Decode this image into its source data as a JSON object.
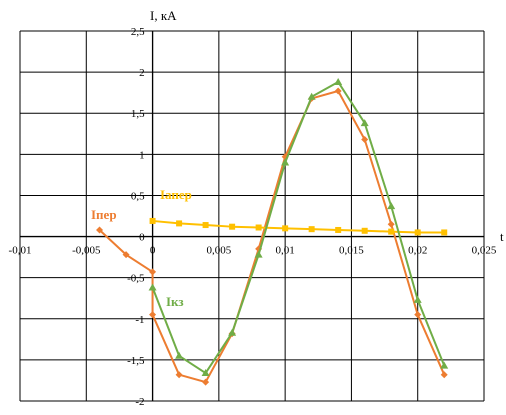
{
  "chart_data": {
    "type": "line",
    "ylabel": "I, кА",
    "xlabel": "t",
    "xlim": [
      -0.01,
      0.025
    ],
    "ylim": [
      -2,
      2.5
    ],
    "x_ticks": [
      "-0,01",
      "-0,005",
      "0",
      "0,005",
      "0,01",
      "0,015",
      "0,02",
      "0,025"
    ],
    "y_ticks": [
      "2,5",
      "2",
      "1,5",
      "1",
      "0,5",
      "0",
      "-0,5",
      "-1",
      "-1,5",
      "-2"
    ],
    "grid": true,
    "series": [
      {
        "name": "Iпер",
        "color": "#ED7D31",
        "marker": "diamond",
        "points": [
          [
            -0.004,
            0.08
          ],
          [
            -0.002,
            -0.22
          ],
          [
            0,
            -0.43
          ],
          [
            0,
            -0.95
          ],
          [
            0.002,
            -1.68
          ],
          [
            0.004,
            -1.77
          ],
          [
            0.006,
            -1.18
          ],
          [
            0.008,
            -0.15
          ],
          [
            0.01,
            0.97
          ],
          [
            0.012,
            1.68
          ],
          [
            0.014,
            1.77
          ],
          [
            0.016,
            1.18
          ],
          [
            0.018,
            0.15
          ],
          [
            0.02,
            -0.95
          ],
          [
            0.022,
            -1.68
          ]
        ]
      },
      {
        "name": "Iапер",
        "color": "#FFC000",
        "marker": "square",
        "points": [
          [
            0,
            0.19
          ],
          [
            0.002,
            0.16
          ],
          [
            0.004,
            0.14
          ],
          [
            0.006,
            0.12
          ],
          [
            0.008,
            0.11
          ],
          [
            0.01,
            0.1
          ],
          [
            0.012,
            0.09
          ],
          [
            0.014,
            0.08
          ],
          [
            0.016,
            0.07
          ],
          [
            0.018,
            0.06
          ],
          [
            0.02,
            0.05
          ],
          [
            0.022,
            0.05
          ]
        ]
      },
      {
        "name": "Iкз",
        "color": "#70AD47",
        "marker": "triangle",
        "points": [
          [
            0,
            -0.62
          ],
          [
            0.002,
            -1.45
          ],
          [
            0.004,
            -1.66
          ],
          [
            0.006,
            -1.17
          ],
          [
            0.008,
            -0.22
          ],
          [
            0.01,
            0.9
          ],
          [
            0.012,
            1.7
          ],
          [
            0.014,
            1.88
          ],
          [
            0.016,
            1.38
          ],
          [
            0.018,
            0.37
          ],
          [
            0.02,
            -0.77
          ],
          [
            0.022,
            -1.57
          ]
        ]
      }
    ]
  }
}
